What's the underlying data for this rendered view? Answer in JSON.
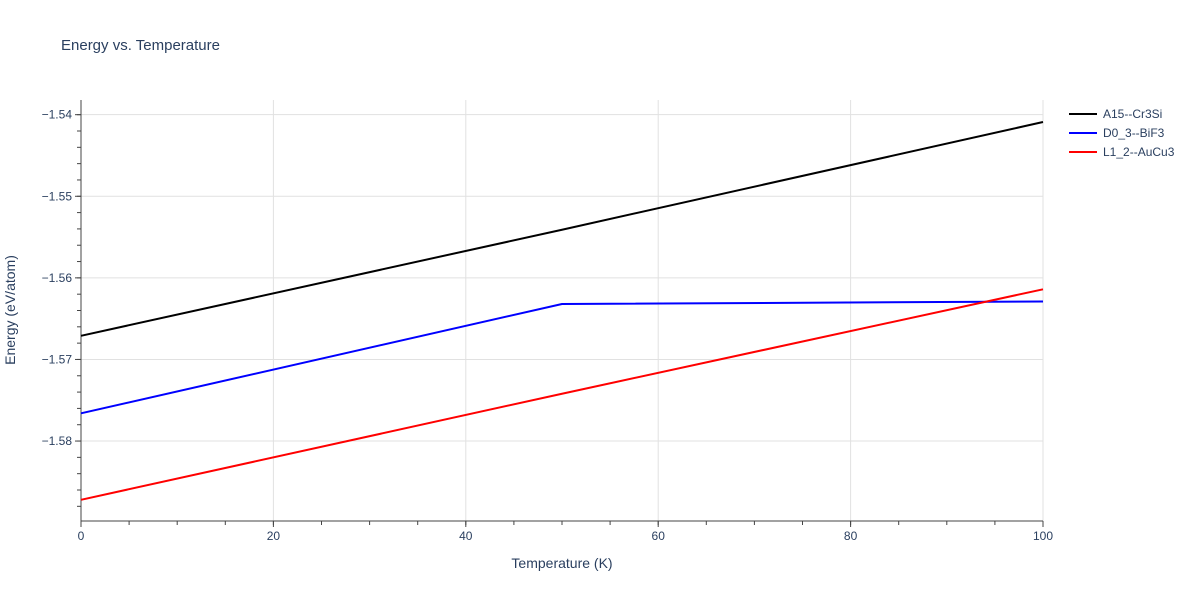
{
  "chart_data": {
    "type": "line",
    "title": "Energy vs. Temperature",
    "xlabel": "Temperature (K)",
    "ylabel": "Energy (eV/atom)",
    "xlim": [
      0,
      100
    ],
    "ylim": [
      -1.5898,
      -1.5382
    ],
    "x_ticks": [
      0,
      20,
      40,
      60,
      80,
      100
    ],
    "x_tick_labels": [
      "0",
      "20",
      "40",
      "60",
      "80",
      "100"
    ],
    "y_ticks": [
      -1.58,
      -1.57,
      -1.56,
      -1.55,
      -1.54
    ],
    "y_tick_labels": [
      "−1.58",
      "−1.57",
      "−1.56",
      "−1.55",
      "−1.54"
    ],
    "x_minor_step": 5,
    "y_minor_step": 0.002,
    "grid": true,
    "legend_position": "top-right",
    "series": [
      {
        "name": "A15--Cr3Si",
        "color": "#000000",
        "x": [
          0,
          50,
          100
        ],
        "y": [
          -1.5671,
          -1.5541,
          -1.5409
        ]
      },
      {
        "name": "D0_3--BiF3",
        "color": "#0000ff",
        "x": [
          0,
          50,
          100
        ],
        "y": [
          -1.5766,
          -1.5632,
          -1.5629
        ]
      },
      {
        "name": "L1_2--AuCu3",
        "color": "#ff0000",
        "x": [
          0,
          50,
          100
        ],
        "y": [
          -1.5872,
          -1.5742,
          -1.5614
        ]
      }
    ]
  }
}
